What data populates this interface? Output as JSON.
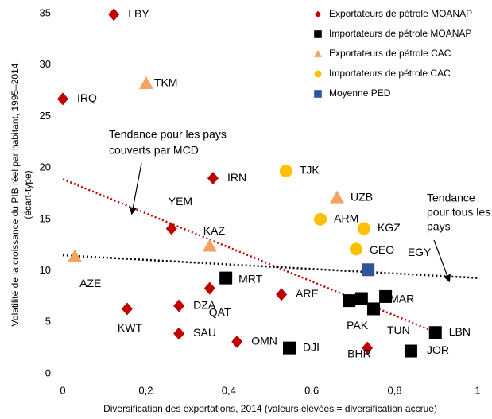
{
  "chart_data": {
    "type": "scatter",
    "y_label": [
      "Volatilité de la croissance du PIB réel par habitant, 1995–2014",
      "(écart-type)"
    ],
    "x_label": "Diversification des exportations, 2014 (valeurs élevées = diversification accrue)",
    "xlim": [
      0,
      1
    ],
    "ylim": [
      0,
      35
    ],
    "xticks": [
      0,
      {
        "value": 0.2,
        "label": "0,2"
      },
      {
        "value": 0.4,
        "label": "0,4"
      },
      {
        "value": 0.6,
        "label": "0,6"
      },
      {
        "value": 0.8,
        "label": "0,8"
      },
      1
    ],
    "yticks": [
      0,
      5,
      10,
      15,
      20,
      25,
      30,
      35
    ],
    "series": [
      {
        "name": "Exportateurs de pétrole MOANAP",
        "color": "#c00000",
        "marker": "diamond",
        "labels": [
          "LBY",
          "IRQ",
          "IRN",
          "YEM",
          "QAT",
          "ARE",
          "DZA",
          "KWT",
          "SAU",
          "OMN",
          "BHR"
        ],
        "x": [
          0.123,
          0,
          0.362,
          0.262,
          0.354,
          0.527,
          0.28,
          0.155,
          0.28,
          0.42,
          0.734
        ],
        "y": [
          34.9,
          26.7,
          19.0,
          14.1,
          8.3,
          7.7,
          6.6,
          6.3,
          3.9,
          3.1,
          2.5
        ]
      },
      {
        "name": "Importateurs de pétrole MOANAP",
        "color": "#000000",
        "marker": "square",
        "labels": [
          "MRT",
          "DJI",
          "JOR",
          "LBN",
          "PAK",
          "EGY",
          "TUN",
          "MAR"
        ],
        "x": [
          0.393,
          0.546,
          0.839,
          0.898,
          0.69,
          0.72,
          0.749,
          0.778
        ],
        "y": [
          9.3,
          2.5,
          2.2,
          4.0,
          7.1,
          7.3,
          6.3,
          7.5
        ]
      },
      {
        "name": "Exportateurs de pétrole CAC",
        "color": "#f4a460",
        "marker": "triangle",
        "labels": [
          "TKM",
          "UZB",
          "KAZ",
          "AZE"
        ],
        "x": [
          0.201,
          0.661,
          0.354,
          0.029
        ],
        "y": [
          28.2,
          17.1,
          12.4,
          11.4
        ]
      },
      {
        "name": "Importateurs de pétrole CAC",
        "color": "#ffc000",
        "marker": "circle",
        "labels": [
          "TJK",
          "ARM",
          "KGZ",
          "GEO"
        ],
        "x": [
          0.538,
          0.621,
          0.726,
          0.707
        ],
        "y": [
          19.7,
          15.0,
          14.1,
          12.1
        ]
      },
      {
        "name": "Moyenne PED",
        "color": "#2f5597",
        "marker": "square",
        "x": [
          0.736
        ],
        "y": [
          10.1
        ]
      }
    ],
    "trend_lines": [
      {
        "color": "#c00000",
        "x": [
          0,
          0.9
        ],
        "y": [
          18.9,
          4.0
        ],
        "annotation": [
          "Tendance pour les pays",
          "couverts par MCD"
        ]
      },
      {
        "color": "#000000",
        "x": [
          0,
          1
        ],
        "y": [
          11.5,
          9.3
        ],
        "annotation": [
          "Tendance",
          "pour tous les",
          "pays"
        ]
      }
    ]
  }
}
